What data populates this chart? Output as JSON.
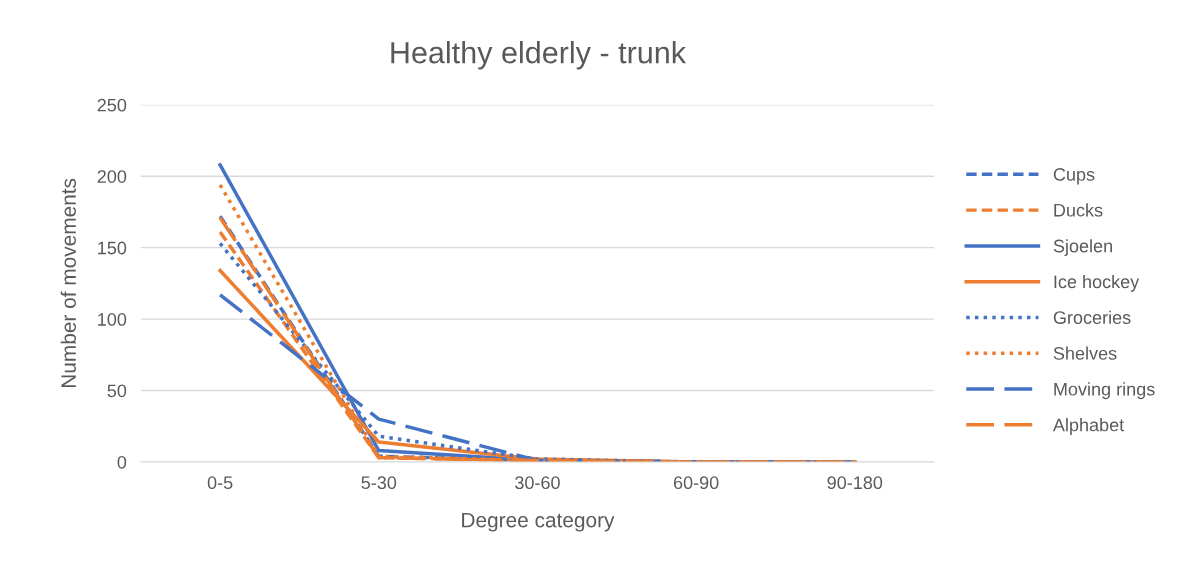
{
  "chart_data": {
    "type": "line",
    "title": "Healthy elderly - trunk",
    "xlabel": "Degree category",
    "ylabel": "Number of movements",
    "categories": [
      "0-5",
      "5-30",
      "30-60",
      "60-90",
      "90-180"
    ],
    "ylim": [
      0,
      250
    ],
    "yticks": [
      0,
      50,
      100,
      150,
      200,
      250
    ],
    "grid": "y",
    "legend": "right",
    "marker": "none",
    "series": [
      {
        "name": "Cups",
        "color": "#4472c4",
        "line_style": "dashed",
        "values": [
          172,
          4,
          1,
          0,
          0
        ]
      },
      {
        "name": "Ducks",
        "color": "#ed7d31",
        "line_style": "dashed",
        "values": [
          161,
          3,
          1,
          0,
          0
        ]
      },
      {
        "name": "Sjoelen",
        "color": "#4472c4",
        "line_style": "solid",
        "values": [
          208,
          8,
          1,
          0,
          0
        ]
      },
      {
        "name": "Ice hockey",
        "color": "#ed7d31",
        "line_style": "solid",
        "values": [
          134,
          14,
          2,
          0,
          0
        ]
      },
      {
        "name": "Groceries",
        "color": "#4472c4",
        "line_style": "dotted",
        "values": [
          153,
          18,
          2,
          0,
          0
        ]
      },
      {
        "name": "Shelves",
        "color": "#ed7d31",
        "line_style": "dotted",
        "values": [
          194,
          4,
          1,
          0,
          0
        ]
      },
      {
        "name": "Moving rings",
        "color": "#4472c4",
        "line_style": "longdash",
        "values": [
          117,
          30,
          1,
          0,
          0
        ]
      },
      {
        "name": "Alphabet",
        "color": "#ed7d31",
        "line_style": "longdash",
        "values": [
          171,
          3,
          1,
          0,
          0
        ]
      }
    ]
  }
}
